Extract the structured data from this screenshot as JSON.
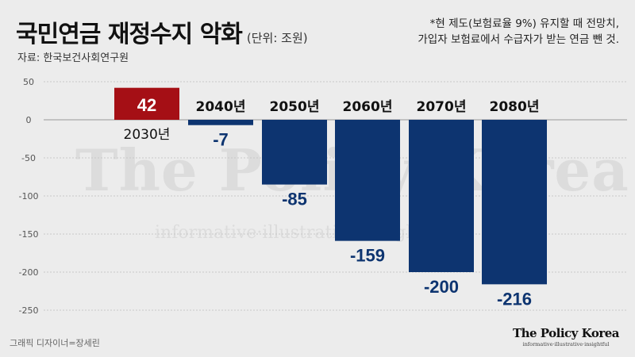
{
  "header": {
    "title": "국민연금 재정수지 악화",
    "unit": "(단위: 조원)",
    "source": "자료: 한국보건사회연구원",
    "note_line1": "*현 제도(보험료율 9%) 유지할 때 전망치,",
    "note_line2": "가입자 보험료에서 수급자가 받는 연금 뺀 것."
  },
  "footer": {
    "credit": "그래픽 디자이너=장세린",
    "brand_name": "The Policy Korea",
    "brand_tag": "informative·illustrative·insightful"
  },
  "watermark": {
    "name": "The Policy Korea",
    "tag": "informative·illustrative·insightful"
  },
  "colors": {
    "positive": "#a50f15",
    "negative": "#0d3470",
    "grid": "#c9c9c9",
    "zero_line": "#999999"
  },
  "chart_data": {
    "type": "bar",
    "categories": [
      "2030년",
      "2040년",
      "2050년",
      "2060년",
      "2070년",
      "2080년"
    ],
    "values": [
      42,
      -7,
      -85,
      -159,
      -200,
      -216
    ],
    "yticks": [
      50,
      0,
      -50,
      -100,
      -150,
      -200,
      -250
    ],
    "ylim": [
      -250,
      50
    ],
    "title": "국민연금 재정수지 악화",
    "unit": "조원",
    "grid": true
  }
}
